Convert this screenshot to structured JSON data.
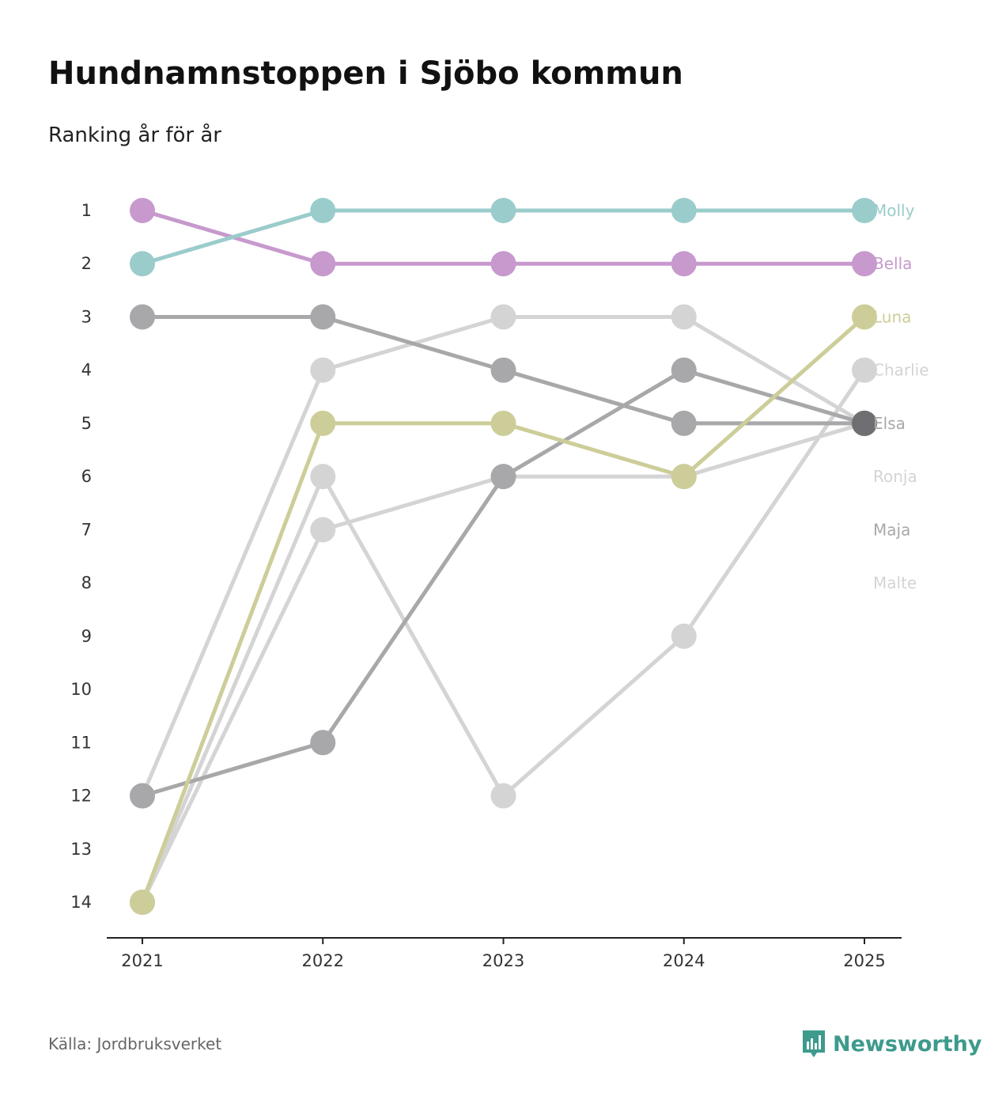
{
  "header": {
    "title": "Hundnamnstoppen i Sjöbo kommun",
    "subtitle": "Ranking år för år"
  },
  "footer": {
    "source": "Källa: Jordbruksverket",
    "brand": "Newsworthy",
    "brand_icon": "newsworthy-logo-icon"
  },
  "colors": {
    "molly": "#9acccb",
    "bella": "#c799cd",
    "luna": "#cdcd99",
    "charlie": "#d4d4d4",
    "elsa": "#a8a8aa",
    "ronja": "#d4d4d4",
    "maja": "#a8a8aa",
    "malte": "#d4d4d4",
    "elsa_highlight": "#6e6e73",
    "axis": "#222222",
    "brand": "#3d9a8c"
  },
  "chart_data": {
    "type": "line",
    "title": "Hundnamnstoppen i Sjöbo kommun",
    "subtitle": "Ranking år för år",
    "xlabel": "",
    "ylabel": "",
    "x": [
      "2021",
      "2022",
      "2023",
      "2024",
      "2025"
    ],
    "y_ticks": [
      "1",
      "2",
      "3",
      "4",
      "5",
      "6",
      "7",
      "8",
      "9",
      "10",
      "11",
      "12",
      "13",
      "14"
    ],
    "ylim": [
      1,
      14
    ],
    "y_inverted": true,
    "series": [
      {
        "name": "Charlie",
        "values": [
          14,
          6,
          12,
          9,
          4
        ],
        "color": "#d4d4d4"
      },
      {
        "name": "Ronja",
        "values": [
          14,
          7,
          6,
          6,
          5
        ],
        "color": "#d4d4d4"
      },
      {
        "name": "Malte",
        "values": [
          12,
          4,
          3,
          3,
          5
        ],
        "color": "#d4d4d4"
      },
      {
        "name": "Maja",
        "values": [
          12,
          11,
          6,
          4,
          5
        ],
        "color": "#a8a8aa"
      },
      {
        "name": "Elsa",
        "values": [
          3,
          3,
          4,
          5,
          5
        ],
        "color": "#a8a8aa"
      },
      {
        "name": "Luna",
        "values": [
          14,
          5,
          5,
          6,
          3
        ],
        "color": "#cdcd99"
      },
      {
        "name": "Bella",
        "values": [
          1,
          2,
          2,
          2,
          2
        ],
        "color": "#c799cd"
      },
      {
        "name": "Molly",
        "values": [
          2,
          1,
          1,
          1,
          1
        ],
        "color": "#9acccb"
      }
    ],
    "end_labels": [
      {
        "name": "Molly",
        "rank": 1,
        "color": "#9acccb"
      },
      {
        "name": "Bella",
        "rank": 2,
        "color": "#c799cd"
      },
      {
        "name": "Luna",
        "rank": 3,
        "color": "#cdcd99"
      },
      {
        "name": "Charlie",
        "rank": 4,
        "color": "#d4d4d4"
      },
      {
        "name": "Elsa",
        "rank": 5,
        "color": "#a8a8aa"
      },
      {
        "name": "Ronja",
        "rank": 6,
        "color": "#d4d4d4"
      },
      {
        "name": "Maja",
        "rank": 7,
        "color": "#a8a8aa"
      },
      {
        "name": "Malte",
        "rank": 8,
        "color": "#d4d4d4"
      }
    ],
    "highlighted_point": {
      "series": "Elsa",
      "x": "2025",
      "rank": 5,
      "color": "#6e6e73"
    },
    "grid": false,
    "legend": "direct labels at right end"
  }
}
